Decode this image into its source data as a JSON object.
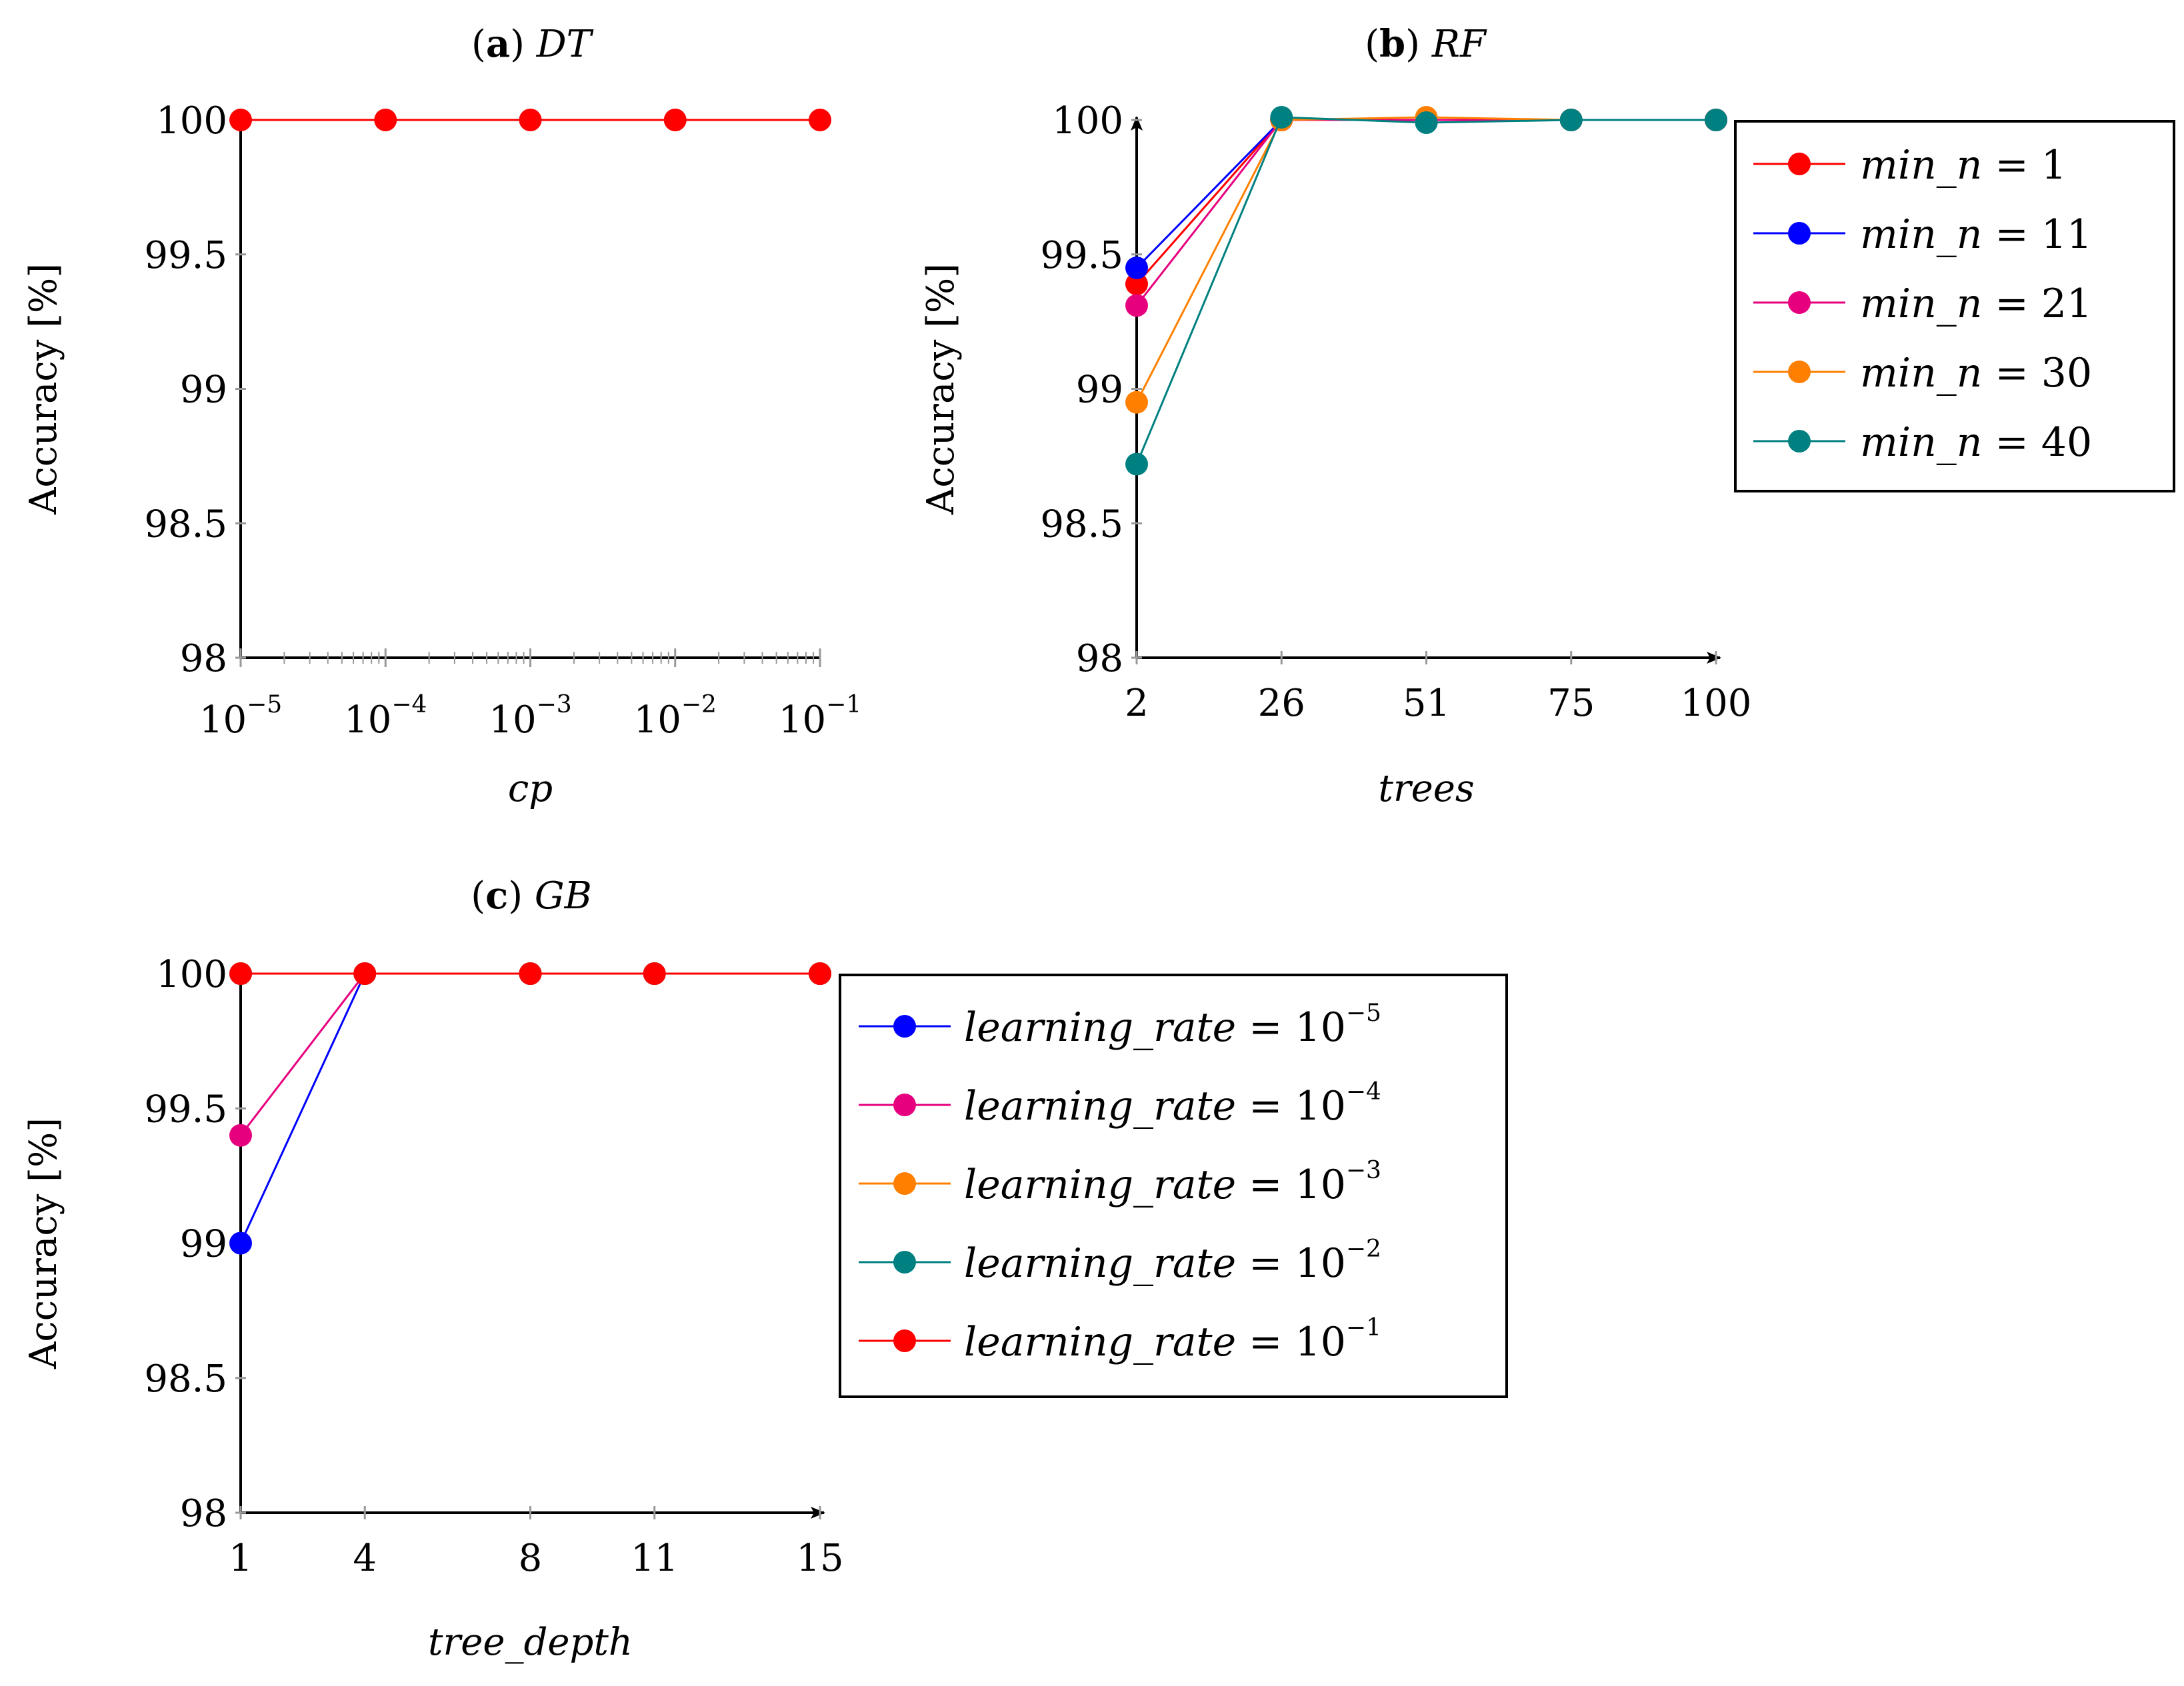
{
  "chart_data": [
    {
      "id": "a",
      "type": "line",
      "title_letter": "a",
      "title_name": "DT",
      "xlabel": "cp",
      "ylabel": "Accuracy [%]",
      "xscale": "log",
      "xlim_exp": [
        -5,
        -1
      ],
      "x_ticks": [
        {
          "base": "10",
          "exp": "−5"
        },
        {
          "base": "10",
          "exp": "−4"
        },
        {
          "base": "10",
          "exp": "−3"
        },
        {
          "base": "10",
          "exp": "−2"
        },
        {
          "base": "10",
          "exp": "−1"
        }
      ],
      "ylim": [
        98,
        100
      ],
      "y_ticks": [
        "98",
        "98.5",
        "99",
        "99.5",
        "100"
      ],
      "legend": null,
      "series": [
        {
          "name": "DT",
          "color": "#ff0000",
          "x_exp": [
            -5,
            -4,
            -3,
            -2,
            -1
          ],
          "values": [
            100,
            100,
            100,
            100,
            100
          ]
        }
      ]
    },
    {
      "id": "b",
      "type": "line",
      "title_letter": "b",
      "title_name": "RF",
      "xlabel": "trees",
      "ylabel": "Accuracy [%]",
      "xscale": "category",
      "categories": [
        "2",
        "26",
        "51",
        "75",
        "100"
      ],
      "ylim": [
        98,
        100
      ],
      "y_ticks": [
        "98",
        "98.5",
        "99",
        "99.5",
        "100"
      ],
      "legend": "right",
      "series": [
        {
          "name": "min_n",
          "eq": "= 1",
          "color": "#ff0000",
          "values": [
            99.39,
            100,
            100,
            100,
            100
          ]
        },
        {
          "name": "min_n",
          "eq": "= 11",
          "color": "#0000ff",
          "values": [
            99.45,
            100,
            100,
            100,
            100
          ]
        },
        {
          "name": "min_n",
          "eq": "= 21",
          "color": "#e6007e",
          "values": [
            99.31,
            100,
            100,
            100,
            100
          ]
        },
        {
          "name": "min_n",
          "eq": "= 30",
          "color": "#ff8000",
          "values": [
            98.95,
            100,
            100.01,
            100,
            100
          ]
        },
        {
          "name": "min_n",
          "eq": "= 40",
          "color": "#008080",
          "values": [
            98.72,
            100.01,
            99.99,
            100,
            100
          ]
        }
      ]
    },
    {
      "id": "c",
      "type": "line",
      "title_letter": "c",
      "title_name": "GB",
      "xlabel": "tree_depth",
      "ylabel": "Accuracy [%]",
      "xscale": "linear",
      "xlim": [
        1,
        15
      ],
      "x_ticks": [
        "1",
        "4",
        "8",
        "11",
        "15"
      ],
      "x_values": [
        1,
        4,
        8,
        11,
        15
      ],
      "ylim": [
        98,
        100
      ],
      "y_ticks": [
        "98",
        "98.5",
        "99",
        "99.5",
        "100"
      ],
      "legend": "right",
      "series": [
        {
          "name": "learning_rate",
          "eq": "= 10",
          "exp": "−5",
          "color": "#0000ff",
          "values": [
            99.0,
            100,
            100,
            100,
            100
          ]
        },
        {
          "name": "learning_rate",
          "eq": "= 10",
          "exp": "−4",
          "color": "#e6007e",
          "values": [
            99.4,
            100,
            100,
            100,
            100
          ]
        },
        {
          "name": "learning_rate",
          "eq": "= 10",
          "exp": "−3",
          "color": "#ff8000",
          "values": [
            100,
            100,
            100,
            100,
            100
          ]
        },
        {
          "name": "learning_rate",
          "eq": "= 10",
          "exp": "−2",
          "color": "#008080",
          "values": [
            100,
            100,
            100,
            100,
            100
          ]
        },
        {
          "name": "learning_rate",
          "eq": "= 10",
          "exp": "−1",
          "color": "#ff0000",
          "values": [
            100,
            100,
            100,
            100,
            100
          ]
        }
      ]
    }
  ]
}
